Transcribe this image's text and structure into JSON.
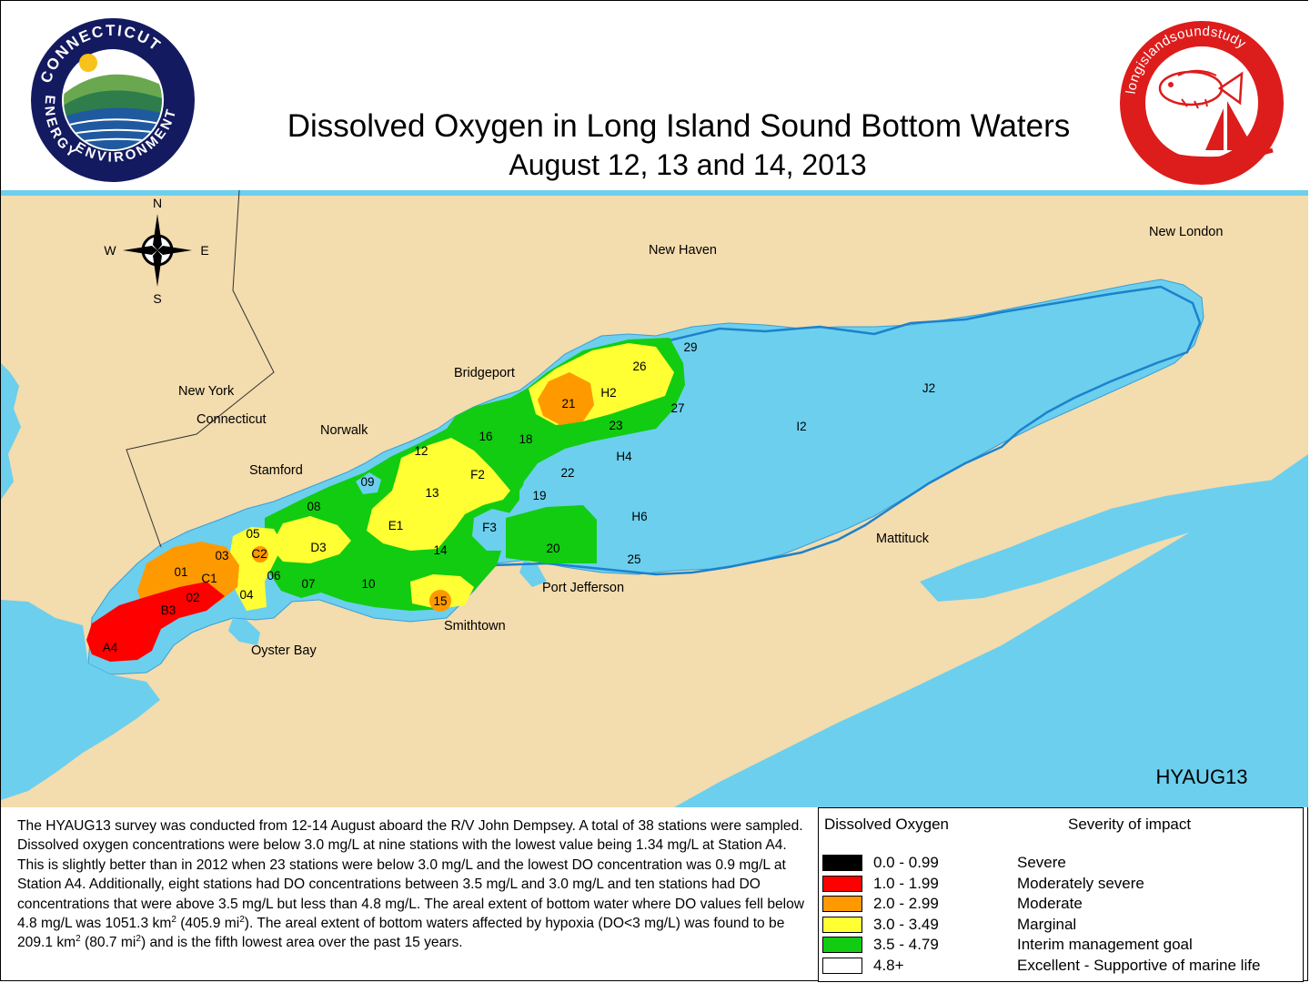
{
  "header": {
    "title": "Dissolved Oxygen in Long Island Sound Bottom Waters",
    "subtitle": "August 12, 13 and 14, 2013"
  },
  "logos": {
    "ct": {
      "arc_top": "CONNECTICUT",
      "arc_left": "ENERGY",
      "arc_bottom": "ENVIRONMENT",
      "name": "ct-energy-environment-seal"
    },
    "lis": {
      "arc_text": "longislandsoundstudy",
      "name": "long-island-sound-study-logo"
    }
  },
  "map": {
    "survey_code": "HYAUG13",
    "compass": {
      "north": "N",
      "south": "S",
      "east": "E",
      "west": "W"
    },
    "places": {
      "new_haven": "New Haven",
      "new_london": "New London",
      "bridgeport": "Bridgeport",
      "new_york": "New York",
      "connecticut": "Connecticut",
      "norwalk": "Norwalk",
      "stamford": "Stamford",
      "port_jefferson": "Port Jefferson",
      "smithtown": "Smithtown",
      "oyster_bay": "Oyster Bay",
      "mattituck": "Mattituck"
    },
    "stations": {
      "s29": "29",
      "s26": "26",
      "h2": "H2",
      "s21": "21",
      "s27": "27",
      "s23": "23",
      "j2": "J2",
      "i2": "I2",
      "s16": "16",
      "s18": "18",
      "h4": "H4",
      "s12": "12",
      "f2": "F2",
      "s22": "22",
      "s09": "09",
      "s13": "13",
      "s19": "19",
      "s08": "08",
      "h6": "H6",
      "f3": "F3",
      "e1": "E1",
      "s05": "05",
      "d3": "D3",
      "s14": "14",
      "s20": "20",
      "s03": "03",
      "c2": "C2",
      "s25": "25",
      "s01": "01",
      "c1": "C1",
      "s06": "06",
      "s07": "07",
      "s10": "10",
      "s04": "04",
      "s02": "02",
      "s15": "15",
      "b3": "B3",
      "a4": "A4"
    },
    "colors": {
      "water": "#6ccfee",
      "land": "#f3dcae",
      "boundary": "#1b82cc",
      "severe": "#000000",
      "moderately_severe": "#ff0000",
      "moderate": "#ff9900",
      "marginal": "#ffff33",
      "interim": "#11cc11",
      "excellent": "#ffffff"
    }
  },
  "summary": {
    "p1": "The HYAUG13 survey was conducted from 12-14 August aboard the R/V John Dempsey. A total of 38 stations were sampled. Dissolved oxygen concentrations were below 3.0 mg/L at nine stations with the lowest value being 1.34 mg/L at Station A4. This is slightly better than in 2012 when 23 stations were below 3.0 mg/L and the lowest DO concentration was 0.9 mg/L at Station A4.  Additionally, eight stations had DO concentrations between 3.5 mg/L and 3.0 mg/L and ten stations had DO concentrations that were above 3.5 mg/L but less than 4.8 mg/L.  The areal extent of bottom water where DO values fell below 4.8 mg/L was 1051.3 km",
    "sup1": "2",
    "p2": " (405.9 mi",
    "sup2": "2",
    "p3": "). The areal extent of bottom waters affected by hypoxia (DO<3 mg/L) was found to be 209.1 km",
    "sup3": "2",
    "p4": " (80.7 mi",
    "sup4": "2",
    "p5": ") and is the fifth lowest area over the past 15 years."
  },
  "legend": {
    "head_do": "Dissolved Oxygen",
    "head_severity": "Severity of impact",
    "rows": [
      {
        "range": "0.0 - 0.99",
        "severity": "Severe",
        "color": "#000000"
      },
      {
        "range": "1.0 - 1.99",
        "severity": "Moderately severe",
        "color": "#ff0000"
      },
      {
        "range": "2.0 - 2.99",
        "severity": "Moderate",
        "color": "#ff9900"
      },
      {
        "range": "3.0 - 3.49",
        "severity": "Marginal",
        "color": "#ffff33"
      },
      {
        "range": "3.5 - 4.79",
        "severity": "Interim management goal",
        "color": "#11cc11"
      },
      {
        "range": "4.8+",
        "severity": "Excellent - Supportive of marine life",
        "color": "#ffffff"
      }
    ]
  }
}
